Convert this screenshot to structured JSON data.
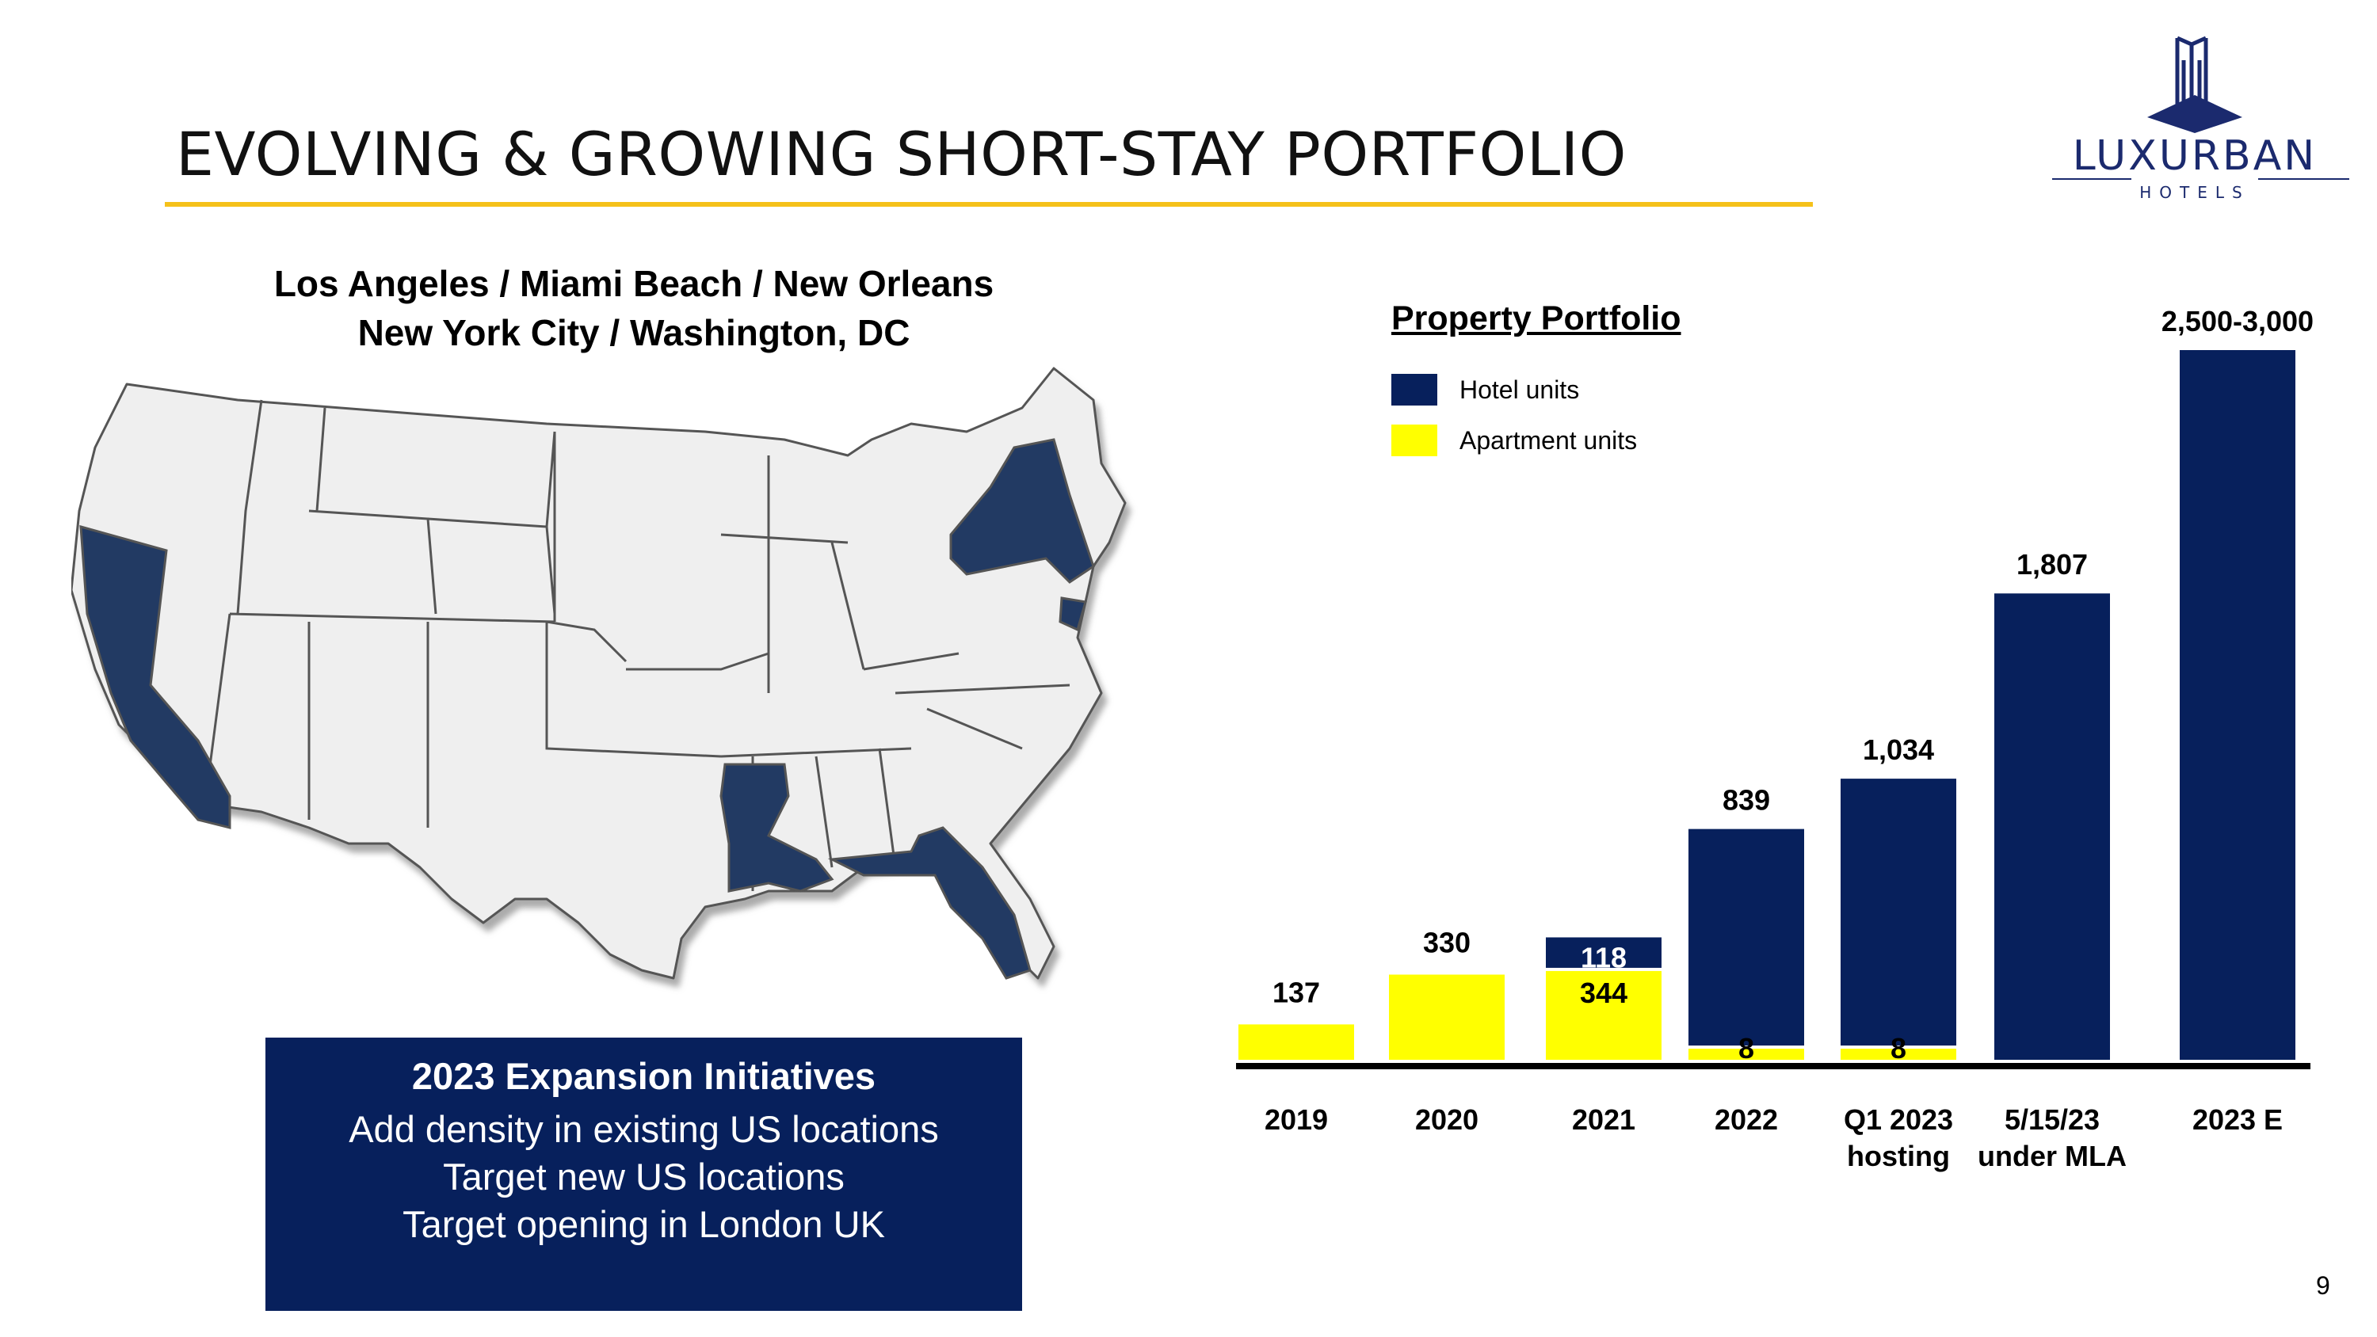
{
  "slide": {
    "title": "EVOLVING & GROWING SHORT-STAY PORTFOLIO",
    "page_number": "9",
    "accent_color": "#f5c11a",
    "navy_color": "#07205c"
  },
  "logo": {
    "name": "LUXURBAN",
    "sub": "HOTELS"
  },
  "map": {
    "locations_line1": "Los Angeles / Miami Beach / New Orleans",
    "locations_line2": "New York City / Washington, DC",
    "highlighted_states": [
      "California",
      "Louisiana",
      "Florida",
      "New York",
      "Washington, DC"
    ]
  },
  "initiatives": {
    "title": "2023 Expansion Initiatives",
    "items": [
      "Add density in existing US locations",
      "Target new US locations",
      "Target opening in London UK"
    ]
  },
  "chart_data": {
    "type": "bar",
    "stacked": true,
    "title": "Property Portfolio",
    "legend_position": "top-left",
    "categories": [
      [
        "2019"
      ],
      [
        "2020"
      ],
      [
        "2021"
      ],
      [
        "2022"
      ],
      [
        "Q1 2023",
        "hosting"
      ],
      [
        "5/15/23",
        "under MLA"
      ],
      [
        "2023 E"
      ]
    ],
    "series": [
      {
        "name": "Apartment units",
        "color": "#ffff00",
        "values": [
          137,
          330,
          344,
          8,
          8,
          0,
          0
        ],
        "labels": [
          "137",
          "330",
          "344",
          "8",
          "8",
          "",
          ""
        ]
      },
      {
        "name": "Hotel units",
        "color": "#07205c",
        "values": [
          0,
          0,
          118,
          839,
          1034,
          1807,
          2750
        ],
        "labels": [
          "",
          "",
          "118",
          "839",
          "1,034",
          "1,807",
          "2,500-3,000"
        ]
      }
    ],
    "grid": false
  }
}
